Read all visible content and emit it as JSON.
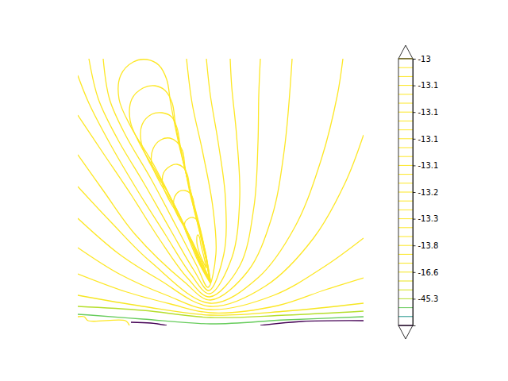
{
  "chart_data": {
    "type": "contour",
    "xlim": [
      -1.8,
      1.8
    ],
    "ylim": [
      0,
      3.36
    ],
    "tick_labels": false,
    "color": "viridis",
    "contours": [
      {
        "level": -13.085,
        "x": [
          -0.13,
          -0.28,
          -0.53,
          -0.83,
          -1.13,
          -1.28,
          -1.26,
          -1.1,
          -0.93,
          -0.78,
          -0.68,
          -0.63,
          -0.53,
          -0.38,
          -0.23,
          -0.16,
          -0.13
        ],
        "y": [
          0.53,
          0.8,
          1.4,
          2.0,
          2.5,
          2.85,
          3.15,
          3.32,
          3.35,
          3.28,
          3.1,
          2.8,
          2.3,
          1.7,
          1.1,
          0.7,
          0.53
        ]
      },
      {
        "level": -13.08,
        "x": [
          -0.13,
          -0.26,
          -0.48,
          -0.75,
          -1.01,
          -1.14,
          -1.12,
          -0.98,
          -0.83,
          -0.7,
          -0.61,
          -0.57,
          -0.48,
          -0.35,
          -0.22,
          -0.16,
          -0.13
        ],
        "y": [
          0.54,
          0.78,
          1.31,
          1.83,
          2.27,
          2.58,
          2.85,
          2.99,
          3.02,
          2.96,
          2.8,
          2.54,
          2.1,
          1.57,
          1.04,
          0.69,
          0.54
        ]
      },
      {
        "level": -13.07,
        "x": [
          -0.13,
          -0.24,
          -0.43,
          -0.66,
          -0.89,
          -1.0,
          -0.99,
          -0.87,
          -0.74,
          -0.62,
          -0.55,
          -0.51,
          -0.43,
          -0.32,
          -0.21,
          -0.15,
          -0.13
        ],
        "y": [
          0.54,
          0.75,
          1.2,
          1.66,
          2.04,
          2.3,
          2.53,
          2.66,
          2.68,
          2.63,
          2.49,
          2.27,
          1.89,
          1.43,
          0.97,
          0.67,
          0.54
        ]
      },
      {
        "level": -13.065,
        "x": [
          -0.13,
          -0.23,
          -0.39,
          -0.58,
          -0.77,
          -0.87,
          -0.85,
          -0.75,
          -0.64,
          -0.55,
          -0.48,
          -0.45,
          -0.39,
          -0.29,
          -0.19,
          -0.15,
          -0.13
        ],
        "y": [
          0.55,
          0.72,
          1.11,
          1.49,
          1.81,
          2.04,
          2.23,
          2.34,
          2.36,
          2.31,
          2.2,
          2.0,
          1.68,
          1.3,
          0.92,
          0.66,
          0.55
        ]
      },
      {
        "level": -13.06,
        "x": [
          -0.13,
          -0.21,
          -0.34,
          -0.49,
          -0.65,
          -0.73,
          -0.72,
          -0.63,
          -0.55,
          -0.47,
          -0.42,
          -0.39,
          -0.34,
          -0.26,
          -0.18,
          -0.15,
          -0.13
        ],
        "y": [
          0.56,
          0.7,
          1.01,
          1.32,
          1.58,
          1.77,
          1.92,
          2.01,
          2.03,
          1.99,
          1.9,
          1.74,
          1.48,
          1.17,
          0.86,
          0.65,
          0.56
        ]
      },
      {
        "level": -13.04,
        "x": [
          -0.13,
          -0.19,
          -0.29,
          -0.41,
          -0.53,
          -0.59,
          -0.58,
          -0.52,
          -0.45,
          -0.39,
          -0.35,
          -0.33,
          -0.29,
          -0.23,
          -0.17,
          -0.14,
          -0.13
        ],
        "y": [
          0.57,
          0.68,
          0.92,
          1.16,
          1.36,
          1.5,
          1.62,
          1.69,
          1.7,
          1.67,
          1.6,
          1.48,
          1.28,
          1.04,
          0.8,
          0.64,
          0.57
        ]
      },
      {
        "level": -13.02,
        "x": [
          -0.13,
          -0.17,
          -0.24,
          -0.33,
          -0.41,
          -0.45,
          -0.45,
          -0.4,
          -0.35,
          -0.31,
          -0.28,
          -0.27,
          -0.24,
          -0.2,
          -0.16,
          -0.14,
          -0.13
        ],
        "y": [
          0.57,
          0.65,
          0.81,
          0.98,
          1.12,
          1.22,
          1.3,
          1.35,
          1.36,
          1.34,
          1.29,
          1.21,
          1.07,
          0.9,
          0.73,
          0.62,
          0.57
        ]
      },
      {
        "level": -13,
        "x": [
          -0.18,
          -0.22,
          -0.27,
          -0.3,
          -0.29,
          -0.27,
          -0.25,
          -0.21,
          -0.18
        ],
        "y": [
          0.72,
          0.8,
          0.92,
          1.05,
          1.14,
          1.12,
          1.02,
          0.86,
          0.72
        ]
      },
      {
        "level": -13.09,
        "x": [
          -1.48,
          -1.4,
          -1.2,
          -0.88,
          -0.56,
          -0.3,
          -0.16,
          -0.06,
          -0.1,
          -0.23,
          -0.36,
          -0.43
        ],
        "y": [
          3.36,
          2.85,
          2.4,
          1.85,
          1.25,
          0.75,
          0.48,
          0.9,
          1.5,
          2.2,
          2.8,
          3.36
        ]
      },
      {
        "level": -13.1,
        "x": [
          -1.66,
          -1.54,
          -1.3,
          -0.96,
          -0.63,
          -0.34,
          -0.15,
          0.04,
          0.06,
          -0.03,
          -0.13,
          -0.18
        ],
        "y": [
          3.36,
          2.85,
          2.35,
          1.78,
          1.2,
          0.7,
          0.44,
          0.9,
          1.6,
          2.3,
          2.9,
          3.36
        ]
      },
      {
        "level": -13.105,
        "x": [
          -1.8,
          -1.66,
          -1.4,
          -1.06,
          -0.7,
          -0.38,
          -0.14,
          0.14,
          0.24,
          0.2,
          0.14,
          0.12
        ],
        "y": [
          3.15,
          2.8,
          2.3,
          1.72,
          1.15,
          0.65,
          0.4,
          0.85,
          1.6,
          2.4,
          3.0,
          3.36
        ]
      },
      {
        "level": -13.11,
        "x": [
          -1.8,
          -1.5,
          -1.13,
          -0.78,
          -0.42,
          -0.14,
          0.24,
          0.42,
          0.47,
          0.48,
          0.5
        ],
        "y": [
          2.65,
          2.2,
          1.65,
          1.1,
          0.6,
          0.36,
          0.75,
          1.5,
          2.3,
          2.9,
          3.36
        ]
      },
      {
        "level": -13.12,
        "x": [
          -1.8,
          -1.48,
          -1.08,
          -0.46,
          -0.13,
          0.34,
          0.64,
          0.8,
          0.9
        ],
        "y": [
          2.15,
          1.7,
          1.15,
          0.55,
          0.32,
          0.68,
          1.35,
          2.2,
          3.36
        ]
      },
      {
        "level": -13.14,
        "x": [
          -1.8,
          -1.38,
          -0.88,
          -0.13,
          0.47,
          0.94,
          1.27,
          1.47,
          1.54
        ],
        "y": [
          1.75,
          1.3,
          0.8,
          0.28,
          0.6,
          1.25,
          2.1,
          2.9,
          3.36
        ]
      },
      {
        "level": -13.2,
        "x": [
          -1.8,
          -1.28,
          -0.78,
          -0.13,
          0.57,
          1.17,
          1.57,
          1.8
        ],
        "y": [
          1.35,
          0.9,
          0.58,
          0.24,
          0.5,
          1.1,
          1.8,
          2.4
        ]
      },
      {
        "level": -13.3,
        "x": [
          -1.8,
          -1.28,
          -0.68,
          -0.13,
          0.67,
          1.32,
          1.8
        ],
        "y": [
          0.98,
          0.65,
          0.38,
          0.2,
          0.38,
          0.75,
          1.1
        ]
      },
      {
        "level": -13.8,
        "x": [
          -1.8,
          -1.18,
          -0.63,
          -0.13,
          0.72,
          1.32,
          1.8
        ],
        "y": [
          0.65,
          0.42,
          0.27,
          0.16,
          0.25,
          0.45,
          0.6
        ]
      },
      {
        "level": -16.6,
        "x": [
          -1.8,
          -0.98,
          -0.13,
          0.82,
          1.8
        ],
        "y": [
          0.38,
          0.24,
          0.13,
          0.18,
          0.28
        ]
      },
      {
        "level": -45.3,
        "x": [
          -1.8,
          -0.98,
          -0.13,
          0.82,
          1.8
        ],
        "y": [
          0.24,
          0.19,
          0.1,
          0.13,
          0.18
        ]
      },
      {
        "level": -80,
        "x": [
          -1.8,
          -1.64,
          -0.98,
          -0.13,
          0.82,
          1.8
        ],
        "y": [
          0.14,
          0.13,
          0.08,
          0.02,
          0.07,
          0.11
        ]
      },
      {
        "level": -13,
        "x": [
          -1.8,
          -1.72,
          -1.67,
          -1.2,
          -1.15
        ],
        "y": [
          0.11,
          0.11,
          0.06,
          0.06,
          0.0
        ]
      },
      {
        "level": -300,
        "x": [
          -1.13,
          -0.88,
          -0.68
        ],
        "y": [
          0.04,
          0.03,
          0.0
        ]
      },
      {
        "level": -300,
        "x": [
          0.5,
          1.02,
          1.8
        ],
        "y": [
          0.0,
          0.05,
          0.06
        ]
      }
    ],
    "colorbar": {
      "levels": [
        -13,
        -13.02,
        -13.04,
        -13.06,
        -13.065,
        -13.07,
        -13.08,
        -13.085,
        -13.09,
        -13.1,
        -13.105,
        -13.11,
        -13.12,
        -13.14,
        -13.17,
        -13.2,
        -13.23,
        -13.26,
        -13.3,
        -13.4,
        -13.6,
        -13.8,
        -14.5,
        -15.4,
        -16.6,
        -22,
        -32,
        -45.3,
        -80,
        -150,
        -300
      ],
      "ticks": [
        -13,
        {
          "value": -13.06,
          "label": "-13.1"
        },
        {
          "value": -13.08,
          "label": "-13.1"
        },
        -13.1,
        {
          "value": -13.12,
          "label": "-13.1"
        },
        -13.2,
        -13.3,
        -13.8,
        -16.6,
        -45.3
      ]
    }
  }
}
